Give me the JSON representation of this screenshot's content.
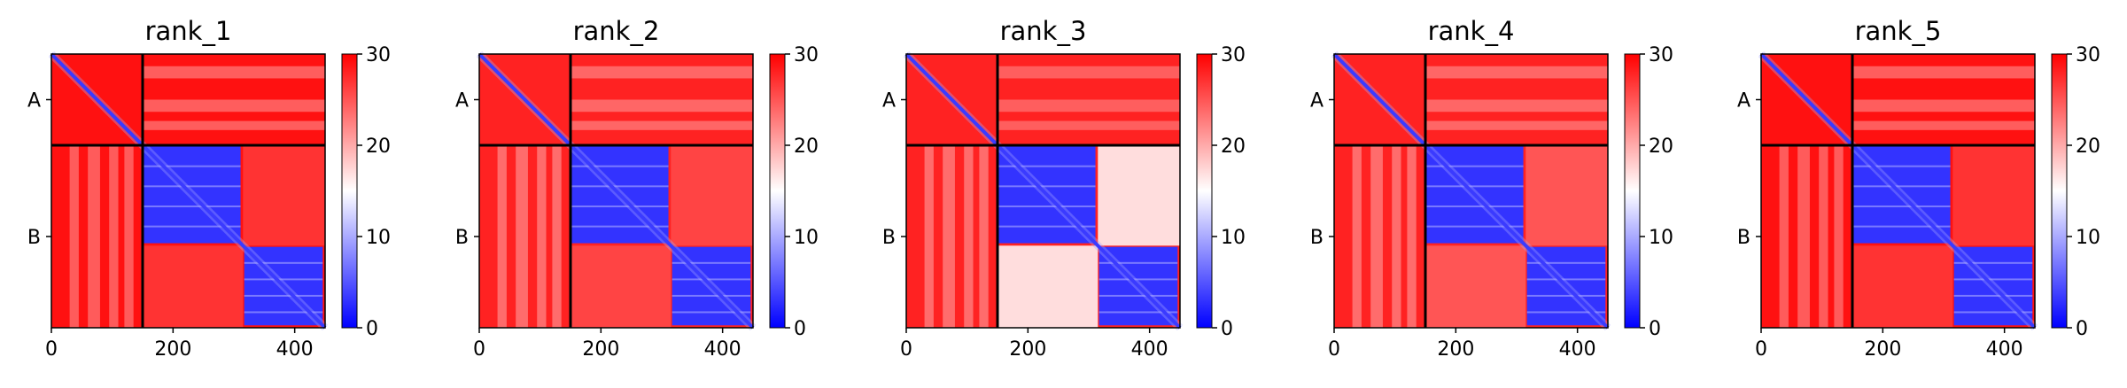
{
  "chart_data": {
    "type": "heatmap",
    "description_type": "predicted aligned error matrices",
    "colormap": [
      "#0000ff",
      "#ffffff",
      "#ff0000"
    ],
    "colorbar": {
      "min": 0,
      "max": 30,
      "ticks": [
        0,
        10,
        20,
        30
      ]
    },
    "chains": [
      {
        "label": "A",
        "start": 0,
        "end": 150
      },
      {
        "label": "B",
        "start": 150,
        "end": 450
      }
    ],
    "domains_B": [
      {
        "start": 150,
        "end": 315
      },
      {
        "start": 315,
        "end": 450
      }
    ],
    "xlim": [
      0,
      450
    ],
    "x_ticks": [
      0,
      200,
      400
    ],
    "panels": [
      {
        "title": "rank_1",
        "inter_domain_err": 27,
        "chainA_err": 26,
        "cross_err": 29
      },
      {
        "title": "rank_2",
        "inter_domain_err": 26,
        "chainA_err": 26,
        "cross_err": 28
      },
      {
        "title": "rank_3",
        "inter_domain_err": 17,
        "chainA_err": 27,
        "cross_err": 28
      },
      {
        "title": "rank_4",
        "inter_domain_err": 25,
        "chainA_err": 26,
        "cross_err": 28
      },
      {
        "title": "rank_5",
        "inter_domain_err": 27,
        "chainA_err": 26,
        "cross_err": 29
      }
    ]
  }
}
